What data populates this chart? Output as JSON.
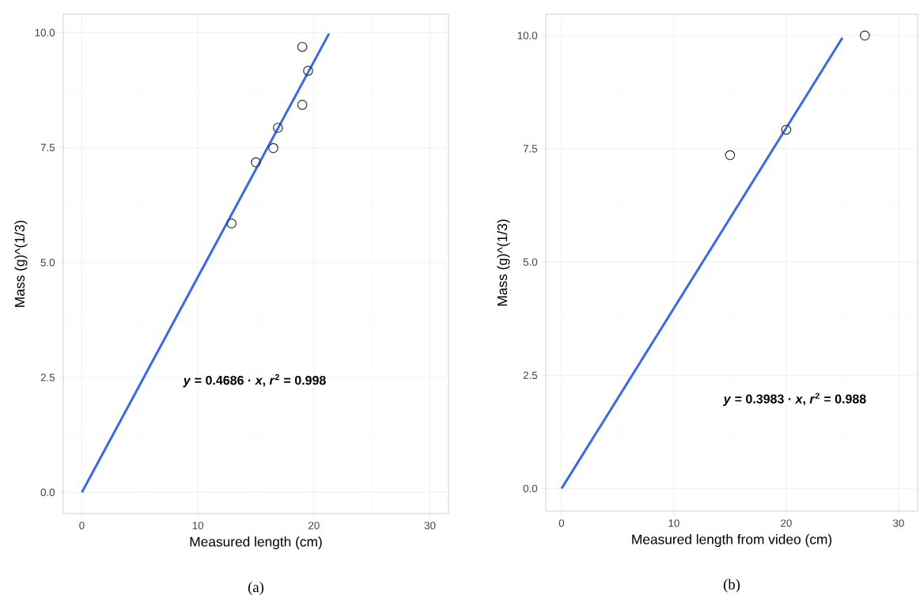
{
  "chart_data": [
    {
      "type": "scatter",
      "xlabel": "Measured length (cm)",
      "ylabel": "Mass (g)^(1/3)",
      "xlim": [
        -1.6,
        31.6
      ],
      "ylim": [
        -0.46,
        10.4
      ],
      "xticks": [
        0,
        10,
        20,
        30
      ],
      "yticks": [
        {
          "value": 0,
          "label": "0.0"
        },
        {
          "value": 2.5,
          "label": "2.5"
        },
        {
          "value": 5,
          "label": "5.0"
        },
        {
          "value": 7.5,
          "label": "7.5"
        },
        {
          "value": 10,
          "label": "10.0"
        }
      ],
      "grid": true,
      "series": [
        {
          "marker": "circle",
          "color": "#333333",
          "x": [
            12.9,
            15.0,
            16.5,
            16.9,
            19.0,
            19.5,
            19.0
          ],
          "values": [
            5.85,
            7.18,
            7.49,
            7.93,
            8.43,
            9.17,
            9.69
          ]
        },
        {
          "type": "line",
          "marker": "none",
          "color": "#3366ff",
          "x": [
            0,
            21.3
          ],
          "values": [
            0,
            9.98
          ]
        }
      ],
      "annotations": [
        "*y* = 0.4686 · *x*,  *r*$^{2}$ = 0.998",
        "(a)"
      ]
    },
    {
      "type": "scatter",
      "xlabel": "Measured length from video (cm)",
      "ylabel": "Mass (g)^(1/3)",
      "xlim": [
        -1.4,
        31.7
      ],
      "ylim": [
        -0.5,
        10.47
      ],
      "xticks": [
        0,
        10,
        20,
        30
      ],
      "yticks": [
        {
          "value": 0,
          "label": "0.0"
        },
        {
          "value": 2.5,
          "label": "2.5"
        },
        {
          "value": 5,
          "label": "5.0"
        },
        {
          "value": 7.5,
          "label": "7.5"
        },
        {
          "value": 10,
          "label": "10.0"
        }
      ],
      "grid": true,
      "series": [
        {
          "marker": "circle",
          "color": "#333333",
          "x": [
            15.0,
            20.0,
            27.0
          ],
          "values": [
            7.36,
            7.92,
            10.0
          ]
        },
        {
          "type": "line",
          "marker": "none",
          "color": "#3366ff",
          "x": [
            0,
            25.0
          ],
          "values": [
            0,
            9.95
          ]
        }
      ],
      "annotations": [
        "*y* = 0.3983 · *x*,  *r*$^{2}$ = 0.988",
        "(b)"
      ]
    }
  ]
}
